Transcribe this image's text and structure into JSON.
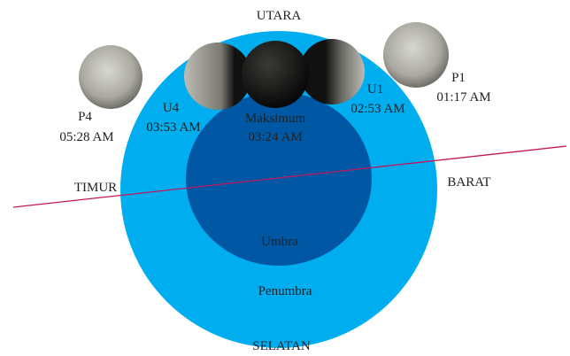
{
  "directions": {
    "north": "UTARA",
    "south": "SELATAN",
    "east": "TIMUR",
    "west": "BARAT"
  },
  "regions": {
    "umbra": "Umbra",
    "penumbra": "Penumbra"
  },
  "events": [
    {
      "label": "P1",
      "time": "01:17 AM"
    },
    {
      "label": "U1",
      "time": "02:53 AM"
    },
    {
      "label": "Maksimum",
      "time": "03:24 AM"
    },
    {
      "label": "U4",
      "time": "03:53 AM"
    },
    {
      "label": "P4",
      "time": "05:28 AM"
    }
  ]
}
